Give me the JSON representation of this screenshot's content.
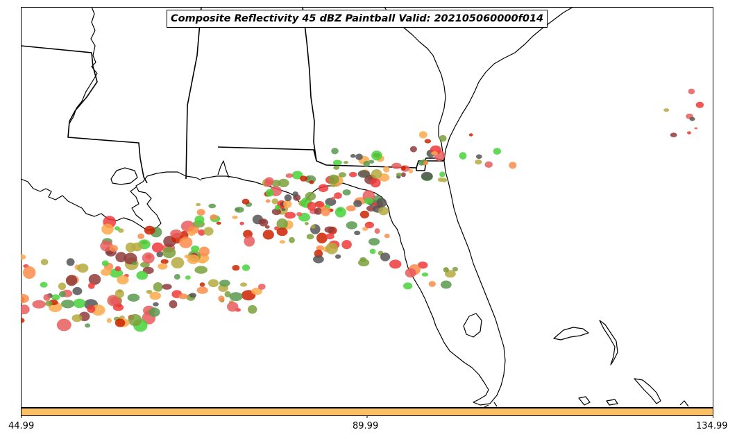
{
  "title": "Composite Reflectivity 45 dBZ Paintball Valid: 202105060000f014",
  "colorbar": {
    "color": "#fdc063",
    "ticks": [
      "44.99",
      "89.99",
      "134.99"
    ]
  },
  "member_colors": [
    "#f03a3a",
    "#fb8c4a",
    "#fca94b",
    "#5a9a4e",
    "#48d43a",
    "#8f3b3b",
    "#b5a940",
    "#555555",
    "#cc2200",
    "#e85c5c",
    "#7aa03a"
  ],
  "map": {
    "region": "US Gulf Coast and Florida",
    "basemap": "coastlines and state borders",
    "line_color": "#000000"
  }
}
